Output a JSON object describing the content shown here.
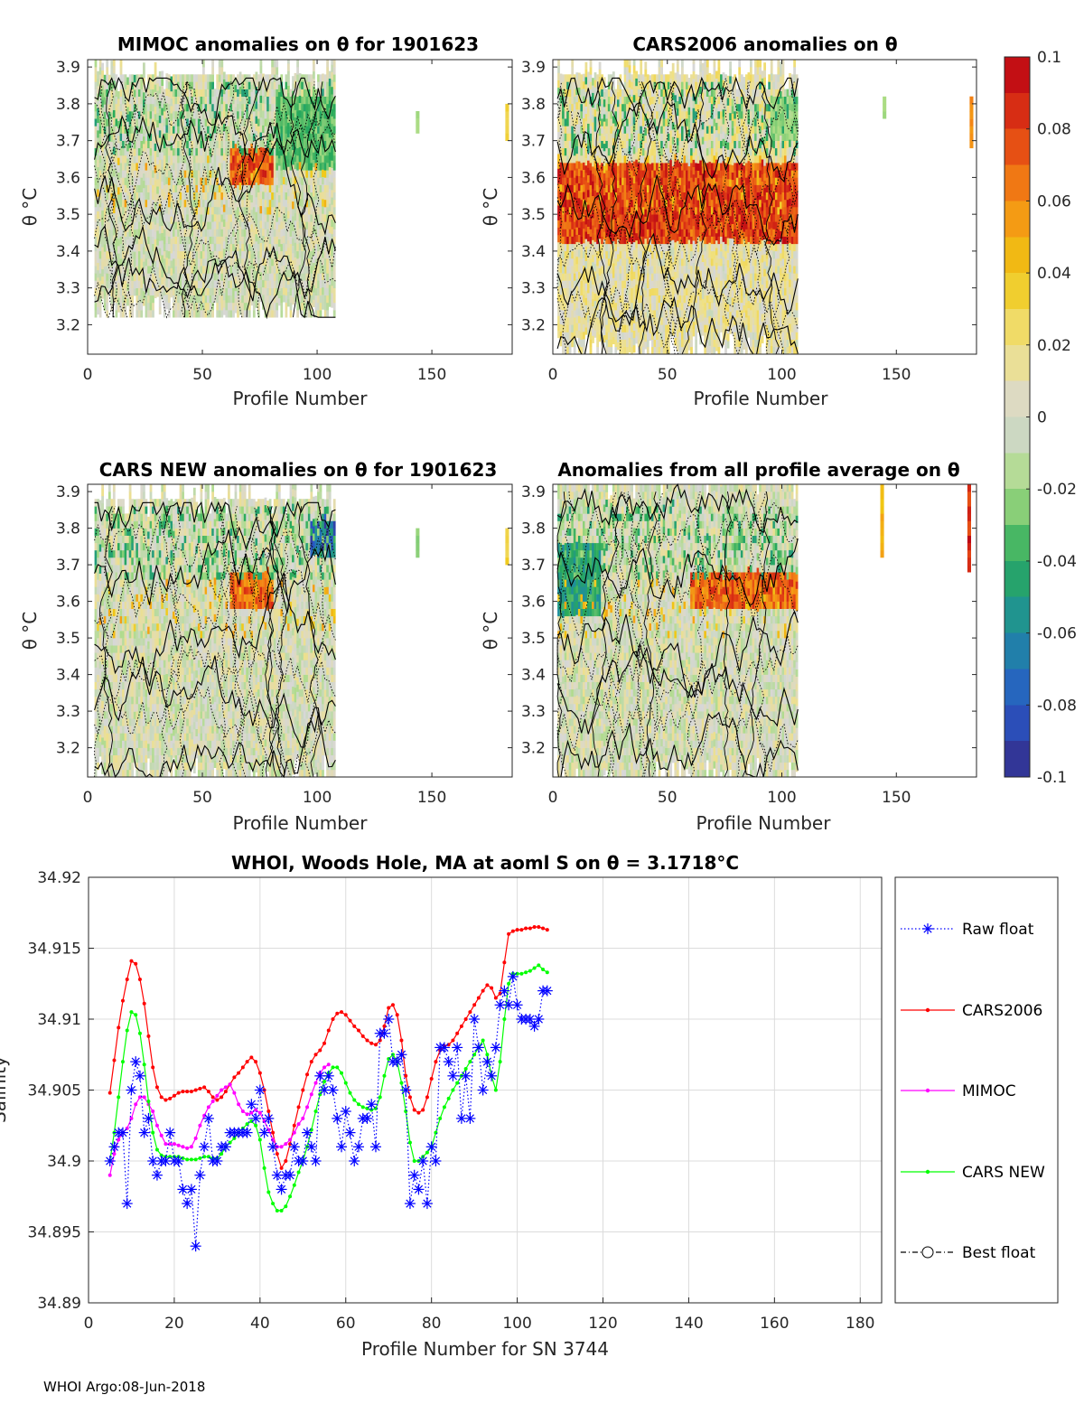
{
  "footer": "WHOI Argo:08-Jun-2018",
  "colors": {
    "raw_float": "#0000ff",
    "cars2006": "#ff0000",
    "mimoc": "#ff00ff",
    "cars_new": "#00ff00",
    "best_float": "#000000",
    "grid": "#dcdcdc"
  },
  "colorbar": {
    "ticks": [
      "0.1",
      "0.08",
      "0.06",
      "0.04",
      "0.02",
      "0",
      "-0.02",
      "-0.04",
      "-0.06",
      "-0.08",
      "-0.1"
    ],
    "range": [
      -0.1,
      0.1
    ]
  },
  "panels": [
    {
      "title": "MIMOC anomalies on θ  for 1901623",
      "ylabel": "θ °C",
      "xlabel": "Profile Number",
      "xticks": [
        "0",
        "50",
        "100",
        "150"
      ],
      "yticks": [
        "3.9",
        "3.8",
        "3.7",
        "3.6",
        "3.5",
        "3.4",
        "3.3",
        "3.2"
      ],
      "xlim": [
        0,
        185
      ],
      "ylim": [
        3.12,
        3.92
      ],
      "data_extent": [
        3,
        108,
        3.22,
        3.87
      ],
      "band": {
        "lo": 3.57,
        "hi": 3.68,
        "x0": 62,
        "x1": 80,
        "value": 0.08
      },
      "neg_band": {
        "lo": 3.62,
        "hi": 3.82,
        "x0": 82,
        "x1": 108,
        "value": -0.035
      },
      "base": 0.0,
      "specks": [
        [
          143,
          3.72,
          3.78,
          -0.02
        ],
        [
          182,
          3.7,
          3.8,
          0.035
        ]
      ]
    },
    {
      "title": "CARS2006 anomalies on θ",
      "ylabel": "θ °C",
      "xlabel": "Profile Number",
      "xticks": [
        "0",
        "50",
        "100",
        "150"
      ],
      "yticks": [
        "3.9",
        "3.8",
        "3.7",
        "3.6",
        "3.5",
        "3.4",
        "3.3",
        "3.2"
      ],
      "xlim": [
        0,
        185
      ],
      "ylim": [
        3.12,
        3.92
      ],
      "data_extent": [
        2,
        107,
        3.12,
        3.87
      ],
      "band": {
        "lo": 3.42,
        "hi": 3.63,
        "x0": 2,
        "x1": 107,
        "value": 0.085
      },
      "neg_band": {
        "lo": 3.7,
        "hi": 3.82,
        "x0": 95,
        "x1": 107,
        "value": -0.025
      },
      "base": 0.01,
      "specks": [
        [
          144,
          3.76,
          3.82,
          -0.02
        ],
        [
          182,
          3.68,
          3.82,
          0.06
        ]
      ]
    },
    {
      "title": "CARS NEW anomalies on θ for 1901623",
      "ylabel": "θ °C",
      "xlabel": "Profile Number",
      "xticks": [
        "0",
        "50",
        "100",
        "150"
      ],
      "yticks": [
        "3.9",
        "3.8",
        "3.7",
        "3.6",
        "3.5",
        "3.4",
        "3.3",
        "3.2"
      ],
      "xlim": [
        0,
        185
      ],
      "ylim": [
        3.12,
        3.92
      ],
      "data_extent": [
        3,
        108,
        3.12,
        3.87
      ],
      "band": {
        "lo": 3.57,
        "hi": 3.68,
        "x0": 62,
        "x1": 80,
        "value": 0.075
      },
      "neg_band": {
        "lo": 3.72,
        "hi": 3.82,
        "x0": 97,
        "x1": 107,
        "value": -0.08
      },
      "base": 0.0,
      "specks": [
        [
          143,
          3.72,
          3.8,
          -0.025
        ],
        [
          182,
          3.7,
          3.8,
          0.035
        ]
      ]
    },
    {
      "title": "Anomalies from all profile average on θ",
      "ylabel": "θ °C",
      "xlabel": "Profile Number",
      "xticks": [
        "0",
        "50",
        "100",
        "150"
      ],
      "yticks": [
        "3.9",
        "3.8",
        "3.7",
        "3.6",
        "3.5",
        "3.4",
        "3.3",
        "3.2"
      ],
      "xlim": [
        0,
        185
      ],
      "ylim": [
        3.12,
        3.92
      ],
      "data_extent": [
        2,
        107,
        3.12,
        3.92
      ],
      "band": {
        "lo": 3.57,
        "hi": 3.68,
        "x0": 60,
        "x1": 107,
        "value": 0.075
      },
      "neg_band": {
        "lo": 3.55,
        "hi": 3.75,
        "x0": 2,
        "x1": 20,
        "value": -0.05
      },
      "base": 0.0,
      "specks": [
        [
          143,
          3.72,
          3.92,
          0.05
        ],
        [
          181,
          3.68,
          3.92,
          0.09
        ]
      ]
    }
  ],
  "chart_data": {
    "type": "line",
    "title": "WHOI, Woods Hole, MA at aoml S on θ = 3.1718°C",
    "xlabel": "Profile Number for SN 3744",
    "ylabel": "Salinity",
    "xlim": [
      0,
      185
    ],
    "ylim": [
      34.89,
      34.92
    ],
    "xticks": [
      "0",
      "20",
      "40",
      "60",
      "80",
      "100",
      "120",
      "140",
      "160",
      "180"
    ],
    "yticks": [
      "34.92",
      "34.915",
      "34.91",
      "34.905",
      "34.9",
      "34.895",
      "34.89"
    ],
    "legend": [
      "Raw float",
      "CARS2006",
      "MIMOC",
      "CARS NEW",
      "Best float"
    ],
    "series": [
      {
        "name": "Raw float",
        "x": [
          5,
          6,
          7,
          8,
          9,
          10,
          11,
          12,
          13,
          14,
          15,
          16,
          17,
          18,
          19,
          20,
          21,
          22,
          23,
          24,
          25,
          26,
          27,
          28,
          29,
          30,
          31,
          32,
          33,
          34,
          35,
          36,
          37,
          38,
          39,
          40,
          41,
          42,
          43,
          44,
          45,
          46,
          47,
          48,
          49,
          50,
          51,
          52,
          53,
          54,
          55,
          56,
          57,
          58,
          59,
          60,
          61,
          62,
          63,
          64,
          65,
          66,
          67,
          68,
          69,
          70,
          71,
          72,
          73,
          74,
          75,
          76,
          77,
          78,
          79,
          80,
          81,
          82,
          83,
          84,
          85,
          86,
          87,
          88,
          89,
          90,
          91,
          92,
          93,
          94,
          95,
          96,
          97,
          98,
          99,
          100,
          101,
          102,
          103,
          104,
          105,
          106,
          107
        ],
        "y": [
          34.9,
          34.901,
          34.902,
          34.902,
          34.897,
          34.905,
          34.907,
          34.906,
          34.902,
          34.903,
          34.9,
          34.899,
          34.9,
          34.9,
          34.902,
          34.9,
          34.9,
          34.898,
          34.897,
          34.898,
          34.894,
          34.899,
          34.901,
          34.903,
          34.9,
          34.9,
          34.901,
          34.901,
          34.902,
          34.902,
          34.902,
          34.902,
          34.902,
          34.904,
          34.903,
          34.905,
          34.902,
          34.903,
          34.901,
          34.899,
          34.898,
          34.899,
          34.899,
          34.901,
          34.9,
          34.9,
          34.902,
          34.901,
          34.9,
          34.906,
          34.905,
          34.906,
          34.905,
          34.903,
          34.901,
          34.9035,
          34.902,
          34.9,
          34.901,
          34.903,
          34.903,
          34.904,
          34.901,
          34.909,
          34.909,
          34.91,
          34.907,
          34.907,
          34.9075,
          34.905,
          34.897,
          34.899,
          34.898,
          34.9,
          34.897,
          34.901,
          34.9,
          34.908,
          34.908,
          34.907,
          34.906,
          34.908,
          34.903,
          34.906,
          34.903,
          34.91,
          34.908,
          34.905,
          34.907,
          34.906,
          34.908,
          34.911,
          34.912,
          34.911,
          34.913,
          34.911,
          34.91,
          34.91,
          34.91,
          34.9095,
          34.91,
          34.912,
          34.912
        ]
      },
      {
        "name": "CARS2006",
        "x": [
          5,
          6,
          7,
          8,
          9,
          10,
          11,
          12,
          13,
          14,
          15,
          16,
          17,
          18,
          19,
          20,
          21,
          22,
          23,
          24,
          25,
          26,
          27,
          28,
          29,
          30,
          31,
          32,
          33,
          34,
          35,
          36,
          37,
          38,
          39,
          40,
          41,
          42,
          43,
          44,
          45,
          46,
          47,
          48,
          49,
          50,
          51,
          52,
          53,
          54,
          55,
          56,
          57,
          58,
          59,
          60,
          61,
          62,
          63,
          64,
          65,
          66,
          67,
          68,
          69,
          70,
          71,
          72,
          73,
          74,
          75,
          76,
          77,
          78,
          79,
          80,
          81,
          82,
          83,
          84,
          85,
          86,
          87,
          88,
          89,
          90,
          91,
          92,
          93,
          94,
          95,
          96,
          97,
          98,
          99,
          100,
          101,
          102,
          103,
          104,
          105,
          106,
          107
        ],
        "y": [
          34.9048,
          34.9071,
          34.9094,
          34.9113,
          34.9128,
          34.9141,
          34.9139,
          34.9128,
          34.9111,
          34.9088,
          34.9066,
          34.9052,
          34.9045,
          34.9043,
          34.9044,
          34.9046,
          34.9048,
          34.9049,
          34.9049,
          34.9049,
          34.905,
          34.9051,
          34.9052,
          34.9049,
          34.9045,
          34.9043,
          34.9045,
          34.9049,
          34.9054,
          34.9059,
          34.9062,
          34.9066,
          34.907,
          34.9073,
          34.907,
          34.9062,
          34.905,
          34.9035,
          34.902,
          34.9005,
          34.8995,
          34.9,
          34.9012,
          34.9025,
          34.9038,
          34.905,
          34.9061,
          34.907,
          34.9075,
          34.9078,
          34.9083,
          34.9092,
          34.91,
          34.9104,
          34.9105,
          34.9103,
          34.9099,
          34.9095,
          34.9092,
          34.9088,
          34.9085,
          34.9083,
          34.9082,
          34.9085,
          34.9095,
          34.9108,
          34.911,
          34.9103,
          34.9085,
          34.906,
          34.9045,
          34.9036,
          34.9034,
          34.9036,
          34.9045,
          34.9058,
          34.907,
          34.9078,
          34.9081,
          34.9082,
          34.9085,
          34.909,
          34.9095,
          34.91,
          34.9105,
          34.911,
          34.9115,
          34.912,
          34.9124,
          34.9122,
          34.9115,
          34.9118,
          34.914,
          34.916,
          34.9162,
          34.9163,
          34.9163,
          34.9164,
          34.9164,
          34.9165,
          34.9165,
          34.9164,
          34.9163
        ]
      },
      {
        "name": "MIMOC",
        "x": [
          5,
          6,
          7,
          8,
          9,
          10,
          11,
          12,
          13,
          14,
          15,
          16,
          17,
          18,
          19,
          20,
          21,
          22,
          23,
          24,
          25,
          26,
          27,
          28,
          29,
          30,
          31,
          32,
          33,
          34,
          35,
          36,
          37,
          38,
          39,
          40,
          41,
          42,
          43,
          44,
          45,
          46,
          47,
          48,
          49,
          50,
          51,
          52,
          53,
          54,
          55,
          56
        ],
        "y": [
          34.899,
          34.9005,
          34.9015,
          34.902,
          34.9023,
          34.903,
          34.904,
          34.9045,
          34.9045,
          34.904,
          34.9035,
          34.9025,
          34.9018,
          34.9012,
          34.9012,
          34.9012,
          34.9011,
          34.901,
          34.9009,
          34.901,
          34.9016,
          34.9025,
          34.9032,
          34.9038,
          34.9042,
          34.9046,
          34.905,
          34.9052,
          34.9054,
          34.9048,
          34.904,
          34.9035,
          34.9033,
          34.9034,
          34.9036,
          34.9034,
          34.9028,
          34.9022,
          34.9015,
          34.901,
          34.901,
          34.9012,
          34.9015,
          34.902,
          34.9026,
          34.903,
          34.9038,
          34.9047,
          34.9055,
          34.9062,
          34.9066,
          34.9068
        ]
      },
      {
        "name": "CARS NEW",
        "x": [
          5,
          6,
          7,
          8,
          9,
          10,
          11,
          12,
          13,
          14,
          15,
          16,
          17,
          18,
          19,
          20,
          21,
          22,
          23,
          24,
          25,
          26,
          27,
          28,
          29,
          30,
          31,
          32,
          33,
          34,
          35,
          36,
          37,
          38,
          39,
          40,
          41,
          42,
          43,
          44,
          45,
          46,
          47,
          48,
          49,
          50,
          51,
          52,
          53,
          54,
          55,
          56,
          57,
          58,
          59,
          60,
          61,
          62,
          63,
          64,
          65,
          66,
          67,
          68,
          69,
          70,
          71,
          72,
          73,
          74,
          75,
          76,
          77,
          78,
          79,
          80,
          81,
          82,
          83,
          84,
          85,
          86,
          87,
          88,
          89,
          90,
          91,
          92,
          93,
          94,
          95,
          96,
          97,
          98,
          99,
          100,
          101,
          102,
          103,
          104,
          105,
          106,
          107
        ],
        "y": [
          34.9,
          34.902,
          34.9045,
          34.907,
          34.9092,
          34.9105,
          34.9103,
          34.909,
          34.9068,
          34.9042,
          34.902,
          34.9008,
          34.9004,
          34.9003,
          34.9003,
          34.9003,
          34.9003,
          34.9002,
          34.9001,
          34.9001,
          34.9001,
          34.9002,
          34.9003,
          34.9003,
          34.9002,
          34.9002,
          34.9005,
          34.901,
          34.9013,
          34.9016,
          34.902,
          34.9023,
          34.9026,
          34.9028,
          34.9025,
          34.9015,
          34.8995,
          34.8978,
          34.897,
          34.8965,
          34.8965,
          34.8968,
          34.8975,
          34.8983,
          34.8992,
          34.9,
          34.901,
          34.9022,
          34.9035,
          34.9047,
          34.9056,
          34.9062,
          34.9066,
          34.9066,
          34.9062,
          34.9055,
          34.9048,
          34.9043,
          34.904,
          34.9038,
          34.9037,
          34.9036,
          34.9037,
          34.9045,
          34.906,
          34.9072,
          34.9075,
          34.907,
          34.9055,
          34.9035,
          34.9013,
          34.9,
          34.9,
          34.9003,
          34.9006,
          34.901,
          34.902,
          34.903,
          34.9038,
          34.9044,
          34.905,
          34.9055,
          34.906,
          34.9065,
          34.907,
          34.9075,
          34.908,
          34.9085,
          34.9075,
          34.906,
          34.905,
          34.907,
          34.91,
          34.9125,
          34.9132,
          34.9132,
          34.9132,
          34.9133,
          34.9134,
          34.9136,
          34.9138,
          34.9135,
          34.9133
        ]
      },
      {
        "name": "Best float",
        "x": [],
        "y": []
      }
    ]
  }
}
